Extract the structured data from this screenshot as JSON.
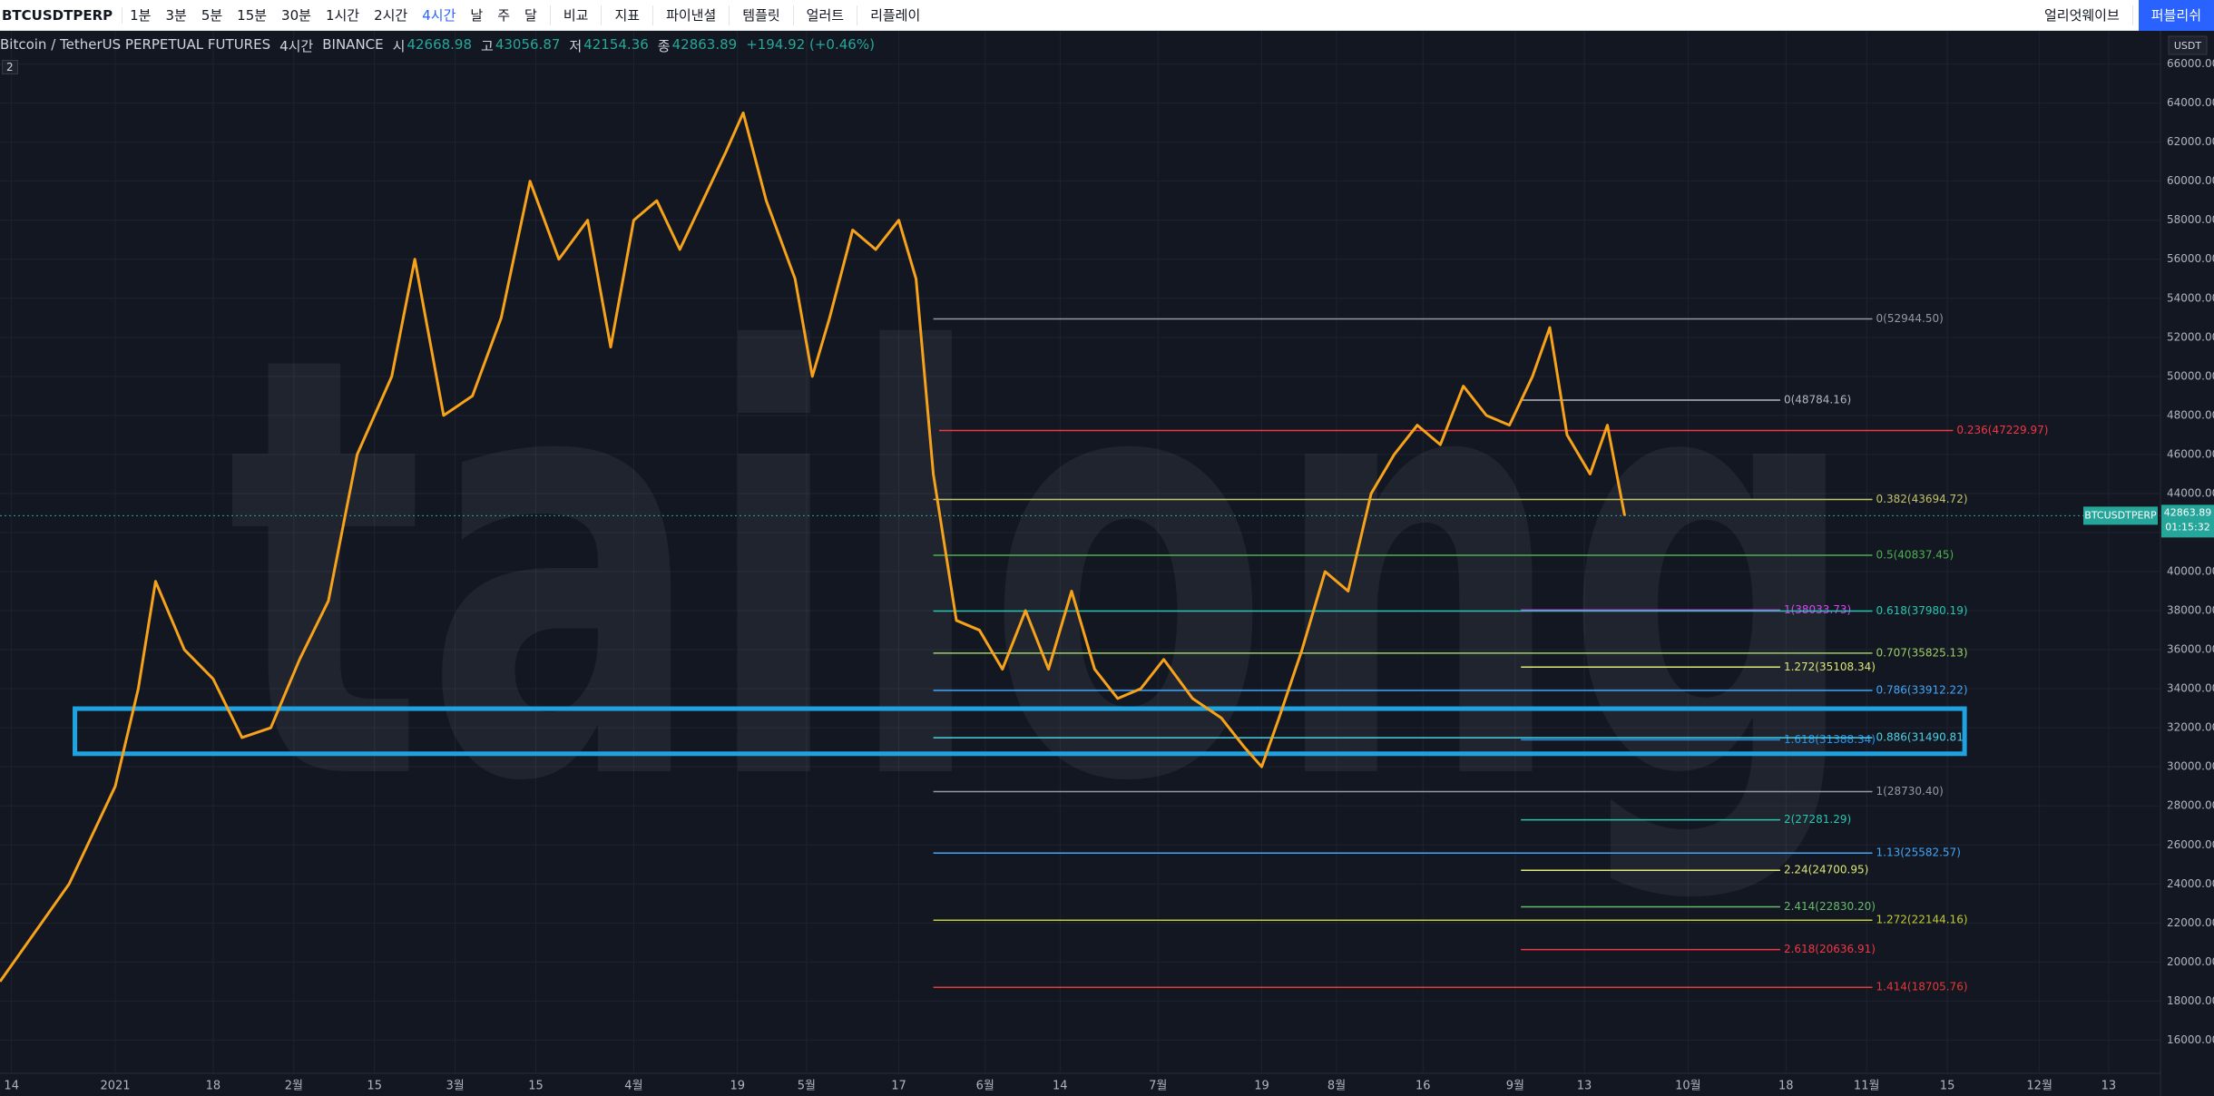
{
  "toolbar": {
    "symbol": "BTCUSDTPERP",
    "intervals": [
      "1분",
      "3분",
      "5분",
      "15분",
      "30분",
      "1시간",
      "2시간",
      "4시간",
      "날",
      "주",
      "달"
    ],
    "active_interval": "4시간",
    "tools": [
      "비교",
      "지표",
      "파이낸셜",
      "템플릿",
      "얼러트",
      "리플레이"
    ],
    "drawing_tool": "얼리엇웨이브",
    "publish": "퍼블리쉬"
  },
  "legend": {
    "title": "Bitcoin / TetherUS PERPETUAL FUTURES",
    "interval": "4시간",
    "exchange": "BINANCE",
    "ohlc": [
      {
        "label": "시",
        "value": 42668.98
      },
      {
        "label": "고",
        "value": 43056.87
      },
      {
        "label": "저",
        "value": 42154.36
      },
      {
        "label": "종",
        "value": 42863.89
      }
    ],
    "change": "+194.92 (+0.46%)",
    "indicators": 2
  },
  "chart": {
    "type": "line",
    "currency": "USDT",
    "watermark": "tailong",
    "xlim": [
      -2,
      373
    ],
    "ylim": [
      14300,
      67700
    ],
    "xticks": [
      {
        "value": 0,
        "label": "14"
      },
      {
        "value": 18,
        "label": "2021"
      },
      {
        "value": 35,
        "label": "18"
      },
      {
        "value": 49,
        "label": "2월"
      },
      {
        "value": 63,
        "label": "15"
      },
      {
        "value": 77,
        "label": "3월"
      },
      {
        "value": 91,
        "label": "15"
      },
      {
        "value": 108,
        "label": "4월"
      },
      {
        "value": 126,
        "label": "19"
      },
      {
        "value": 138,
        "label": "5월"
      },
      {
        "value": 154,
        "label": "17"
      },
      {
        "value": 169,
        "label": "6월"
      },
      {
        "value": 182,
        "label": "14"
      },
      {
        "value": 199,
        "label": "7월"
      },
      {
        "value": 217,
        "label": "19"
      },
      {
        "value": 230,
        "label": "8월"
      },
      {
        "value": 245,
        "label": "16"
      },
      {
        "value": 261,
        "label": "9월"
      },
      {
        "value": 273,
        "label": "13"
      },
      {
        "value": 291,
        "label": "10월"
      },
      {
        "value": 308,
        "label": "18"
      },
      {
        "value": 322,
        "label": "11월"
      },
      {
        "value": 336,
        "label": "15"
      },
      {
        "value": 352,
        "label": "12월"
      },
      {
        "value": 364,
        "label": "13"
      }
    ],
    "yticks": [
      {
        "value": 16000,
        "label": "16000.00"
      },
      {
        "value": 18000,
        "label": "18000.00"
      },
      {
        "value": 20000,
        "label": "20000.00"
      },
      {
        "value": 22000,
        "label": "22000.00"
      },
      {
        "value": 24000,
        "label": "24000.00"
      },
      {
        "value": 26000,
        "label": "26000.00"
      },
      {
        "value": 28000,
        "label": "28000.00"
      },
      {
        "value": 30000,
        "label": "30000.00"
      },
      {
        "value": 32000,
        "label": "32000.00"
      },
      {
        "value": 34000,
        "label": "34000.00"
      },
      {
        "value": 36000,
        "label": "36000.00"
      },
      {
        "value": 38000,
        "label": "38000.00"
      },
      {
        "value": 40000,
        "label": "40000.00"
      },
      {
        "value": 42000,
        "label": "42000.00"
      },
      {
        "value": 44000,
        "label": "44000.00"
      },
      {
        "value": 46000,
        "label": "46000.00"
      },
      {
        "value": 48000,
        "label": "48000.00"
      },
      {
        "value": 50000,
        "label": "50000.00"
      },
      {
        "value": 52000,
        "label": "52000.00"
      },
      {
        "value": 54000,
        "label": "54000.00"
      },
      {
        "value": 56000,
        "label": "56000.00"
      },
      {
        "value": 58000,
        "label": "58000.00"
      },
      {
        "value": 60000,
        "label": "60000.00"
      },
      {
        "value": 62000,
        "label": "62000.00"
      },
      {
        "value": 64000,
        "label": "64000.00"
      },
      {
        "value": 66000,
        "label": "66000.00"
      }
    ],
    "grid": true,
    "price": {
      "color": "#f7a21b",
      "x": [
        -2,
        10,
        18,
        22,
        25,
        30,
        35,
        40,
        45,
        50,
        55,
        60,
        66,
        70,
        75,
        80,
        85,
        90,
        95,
        100,
        104,
        108,
        112,
        116,
        120,
        124,
        127,
        131,
        136,
        139,
        142,
        146,
        150,
        154,
        157,
        160,
        164,
        168,
        172,
        176,
        180,
        184,
        188,
        192,
        196,
        200,
        205,
        210,
        214,
        217,
        220,
        224,
        228,
        232,
        236,
        240,
        244,
        248,
        252,
        256,
        260,
        264,
        267,
        270,
        274,
        277,
        280
      ],
      "values": [
        19000,
        24000,
        29000,
        34000,
        39500,
        36000,
        34500,
        31500,
        32000,
        35500,
        38500,
        46000,
        50000,
        56000,
        48000,
        49000,
        53000,
        60000,
        56000,
        58000,
        51500,
        58000,
        59000,
        56500,
        59000,
        61500,
        63500,
        59000,
        55000,
        50000,
        53000,
        57500,
        56500,
        58000,
        55000,
        45000,
        37500,
        37000,
        35000,
        38000,
        35000,
        39000,
        35000,
        33500,
        34000,
        35500,
        33500,
        32500,
        31000,
        30000,
        32500,
        36000,
        40000,
        39000,
        44000,
        46000,
        47500,
        46500,
        49500,
        48000,
        47500,
        50000,
        52500,
        47000,
        45000,
        47500,
        42864
      ]
    },
    "last": {
      "symbol": "BTCUSDTPERP",
      "value": 42863.89,
      "countdown": "01:15:32",
      "color": "#26a69a"
    },
    "fib_levels": [
      {
        "label": "0(52944.50)",
        "price": 52944.5,
        "from": 160,
        "to": 323,
        "color": "#9598a1"
      },
      {
        "label": "0(48784.16)",
        "price": 48784.16,
        "from": 262,
        "to": 307,
        "color": "#b2b5be"
      },
      {
        "label": "0.236(47229.97)",
        "price": 47229.97,
        "from": 161,
        "to": 337,
        "color": "#f23645"
      },
      {
        "label": "0.382(43694.72)",
        "price": 43694.72,
        "from": 160,
        "to": 323,
        "color": "#c3c36a"
      },
      {
        "label": "0.5(40837.45)",
        "price": 40837.45,
        "from": 160,
        "to": 323,
        "color": "#4caf50"
      },
      {
        "label": "1(38033.73)",
        "price": 38033.73,
        "from": 262,
        "to": 307,
        "color": "#e040fb"
      },
      {
        "label": "0.618(37980.19)",
        "price": 37980.19,
        "from": 160,
        "to": 323,
        "color": "#26c6b0"
      },
      {
        "label": "0.707(35825.13)",
        "price": 35825.13,
        "from": 160,
        "to": 323,
        "color": "#9ccc65"
      },
      {
        "label": "1.272(35108.34)",
        "price": 35108.34,
        "from": 262,
        "to": 307,
        "color": "#dce775"
      },
      {
        "label": "0.786(33912.22)",
        "price": 33912.22,
        "from": 160,
        "to": 323,
        "color": "#42a5f5"
      },
      {
        "label": "1.618(31388.34)",
        "price": 31388.34,
        "from": 262,
        "to": 307,
        "color": "#2196f3"
      },
      {
        "label": "0.886(31490.81)",
        "price": 31490.81,
        "from": 160,
        "to": 323,
        "color": "#4dd0e1"
      },
      {
        "label": "1(28730.40)",
        "price": 28730.4,
        "from": 160,
        "to": 323,
        "color": "#9598a1"
      },
      {
        "label": "2(27281.29)",
        "price": 27281.29,
        "from": 262,
        "to": 307,
        "color": "#26c6b0"
      },
      {
        "label": "1.13(25582.57)",
        "price": 25582.57,
        "from": 160,
        "to": 323,
        "color": "#42a5f5"
      },
      {
        "label": "2.24(24700.95)",
        "price": 24700.95,
        "from": 262,
        "to": 307,
        "color": "#dce775"
      },
      {
        "label": "2.414(22830.20)",
        "price": 22830.2,
        "from": 262,
        "to": 307,
        "color": "#66bb6a"
      },
      {
        "label": "1.272(22144.16)",
        "price": 22144.16,
        "from": 160,
        "to": 323,
        "color": "#c0ca33"
      },
      {
        "label": "2.618(20636.91)",
        "price": 20636.91,
        "from": 262,
        "to": 307,
        "color": "#f23645"
      },
      {
        "label": "1.414(18705.76)",
        "price": 18705.76,
        "from": 160,
        "to": 323,
        "color": "#e53935"
      }
    ],
    "zone": {
      "from": 11,
      "to": 339,
      "low": 30670,
      "high": 32980,
      "color": "#1fa2e0"
    }
  }
}
